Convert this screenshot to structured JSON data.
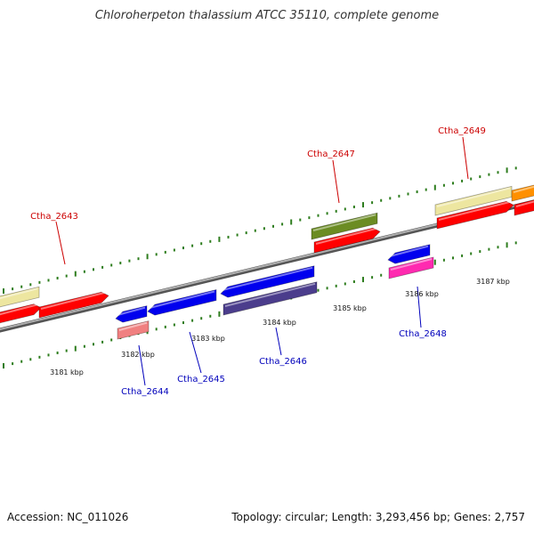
{
  "title": "Chloroherpeton thalassium ATCC 35110, complete genome",
  "accession": "Accession: NC_011026",
  "topology": "Topology: circular; Length: 3,293,456 bp; Genes: 2,757",
  "colors": {
    "backbone": "#8a8a8a",
    "ruler": "#2e7d1e",
    "label_fwd": "#cc0000",
    "label_rev": "#0000bb",
    "red": "#ff0000",
    "yellow": "#ede6a0",
    "olive": "#6b8c23",
    "orange": "#ff9000",
    "blue": "#0000ee",
    "pink": "#ff2ab0",
    "salmon": "#f08080",
    "slate": "#4b3d8c"
  },
  "ruler_labels": [
    "3181 kbp",
    "3182 kbp",
    "3183 kbp",
    "3184 kbp",
    "3185 kbp",
    "3186 kbp",
    "3187 kbp"
  ],
  "genes": [
    {
      "id": "Ctha_2643",
      "strand": "+"
    },
    {
      "id": "Ctha_2647",
      "strand": "+"
    },
    {
      "id": "Ctha_2649",
      "strand": "+"
    },
    {
      "id": "Ctha_2644",
      "strand": "-"
    },
    {
      "id": "Ctha_2645",
      "strand": "-"
    },
    {
      "id": "Ctha_2646",
      "strand": "-"
    },
    {
      "id": "Ctha_2648",
      "strand": "-"
    }
  ]
}
